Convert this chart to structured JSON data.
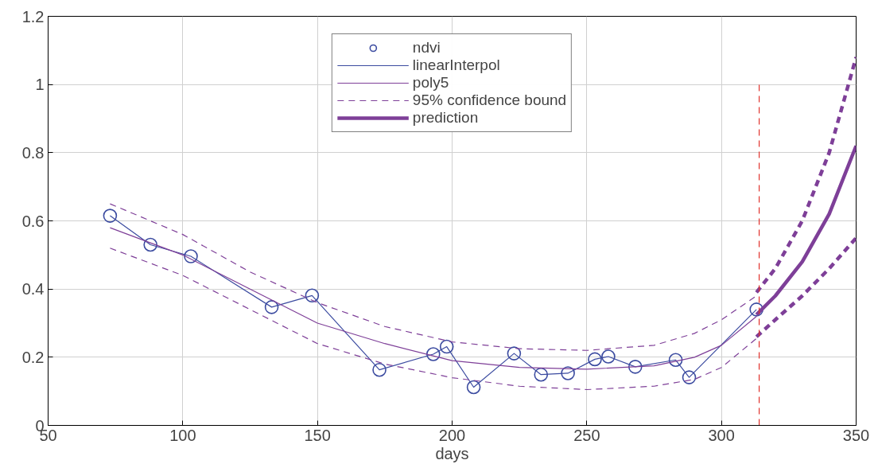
{
  "chart_data": {
    "type": "line",
    "xlabel": "days",
    "xlim": [
      50,
      350
    ],
    "ylim": [
      0,
      1.2
    ],
    "xticks": [
      50,
      100,
      150,
      200,
      250,
      300,
      350
    ],
    "yticks": [
      0,
      0.2,
      0.4,
      0.6,
      0.8,
      1,
      1.2
    ],
    "grid": true,
    "legend": "top",
    "series": [
      {
        "name": "ndvi",
        "type": "scatter",
        "marker": "circle",
        "color": "#3b4ba0",
        "x": [
          73,
          88,
          103,
          133,
          148,
          173,
          193,
          198,
          208,
          223,
          233,
          243,
          253,
          258,
          268,
          283,
          288,
          313
        ],
        "values": [
          0.615,
          0.53,
          0.496,
          0.347,
          0.381,
          0.163,
          0.209,
          0.231,
          0.112,
          0.211,
          0.149,
          0.153,
          0.194,
          0.202,
          0.172,
          0.192,
          0.141,
          0.34
        ]
      },
      {
        "name": "linearInterpol",
        "color": "#3b4ba0",
        "x": [
          73,
          88,
          103,
          133,
          148,
          173,
          193,
          198,
          208,
          223,
          233,
          243,
          253,
          258,
          268,
          283,
          288,
          313
        ],
        "values": [
          0.615,
          0.53,
          0.496,
          0.347,
          0.381,
          0.163,
          0.209,
          0.231,
          0.112,
          0.211,
          0.149,
          0.153,
          0.194,
          0.202,
          0.172,
          0.192,
          0.141,
          0.34
        ]
      },
      {
        "name": "poly5",
        "color": "#7e3f98",
        "x": [
          73,
          100,
          125,
          150,
          175,
          200,
          225,
          250,
          275,
          290,
          300,
          313
        ],
        "values": [
          0.58,
          0.5,
          0.4,
          0.3,
          0.24,
          0.19,
          0.17,
          0.165,
          0.175,
          0.2,
          0.235,
          0.32
        ]
      },
      {
        "name": "95% confidence bound",
        "line_style": "dashed",
        "color": "#7e3f98",
        "x": [
          73,
          100,
          125,
          150,
          175,
          200,
          225,
          250,
          275,
          290,
          300,
          313
        ],
        "values": [
          0.65,
          0.56,
          0.45,
          0.36,
          0.29,
          0.245,
          0.225,
          0.22,
          0.235,
          0.27,
          0.31,
          0.38
        ]
      },
      {
        "line_style": "dashed",
        "color": "#7e3f98",
        "x": [
          73,
          100,
          125,
          150,
          175,
          200,
          225,
          250,
          275,
          290,
          300,
          313
        ],
        "values": [
          0.52,
          0.44,
          0.34,
          0.24,
          0.18,
          0.14,
          0.115,
          0.105,
          0.115,
          0.135,
          0.17,
          0.255
        ]
      },
      {
        "name": "prediction",
        "color": "#7e3f98",
        "x": [
          313,
          320,
          330,
          340,
          350
        ],
        "values": [
          0.325,
          0.38,
          0.48,
          0.62,
          0.82
        ]
      },
      {
        "line_style": "dashed",
        "color": "#7e3f98",
        "x": [
          313,
          320,
          330,
          340,
          350
        ],
        "values": [
          0.39,
          0.46,
          0.6,
          0.8,
          1.08
        ]
      },
      {
        "line_style": "dashed",
        "color": "#7e3f98",
        "x": [
          313,
          320,
          330,
          340,
          350
        ],
        "values": [
          0.26,
          0.31,
          0.38,
          0.46,
          0.55
        ]
      },
      {
        "line_style": "dashed",
        "color": "#e0302a",
        "x": [
          314,
          314
        ],
        "values": [
          0,
          1
        ]
      }
    ]
  }
}
